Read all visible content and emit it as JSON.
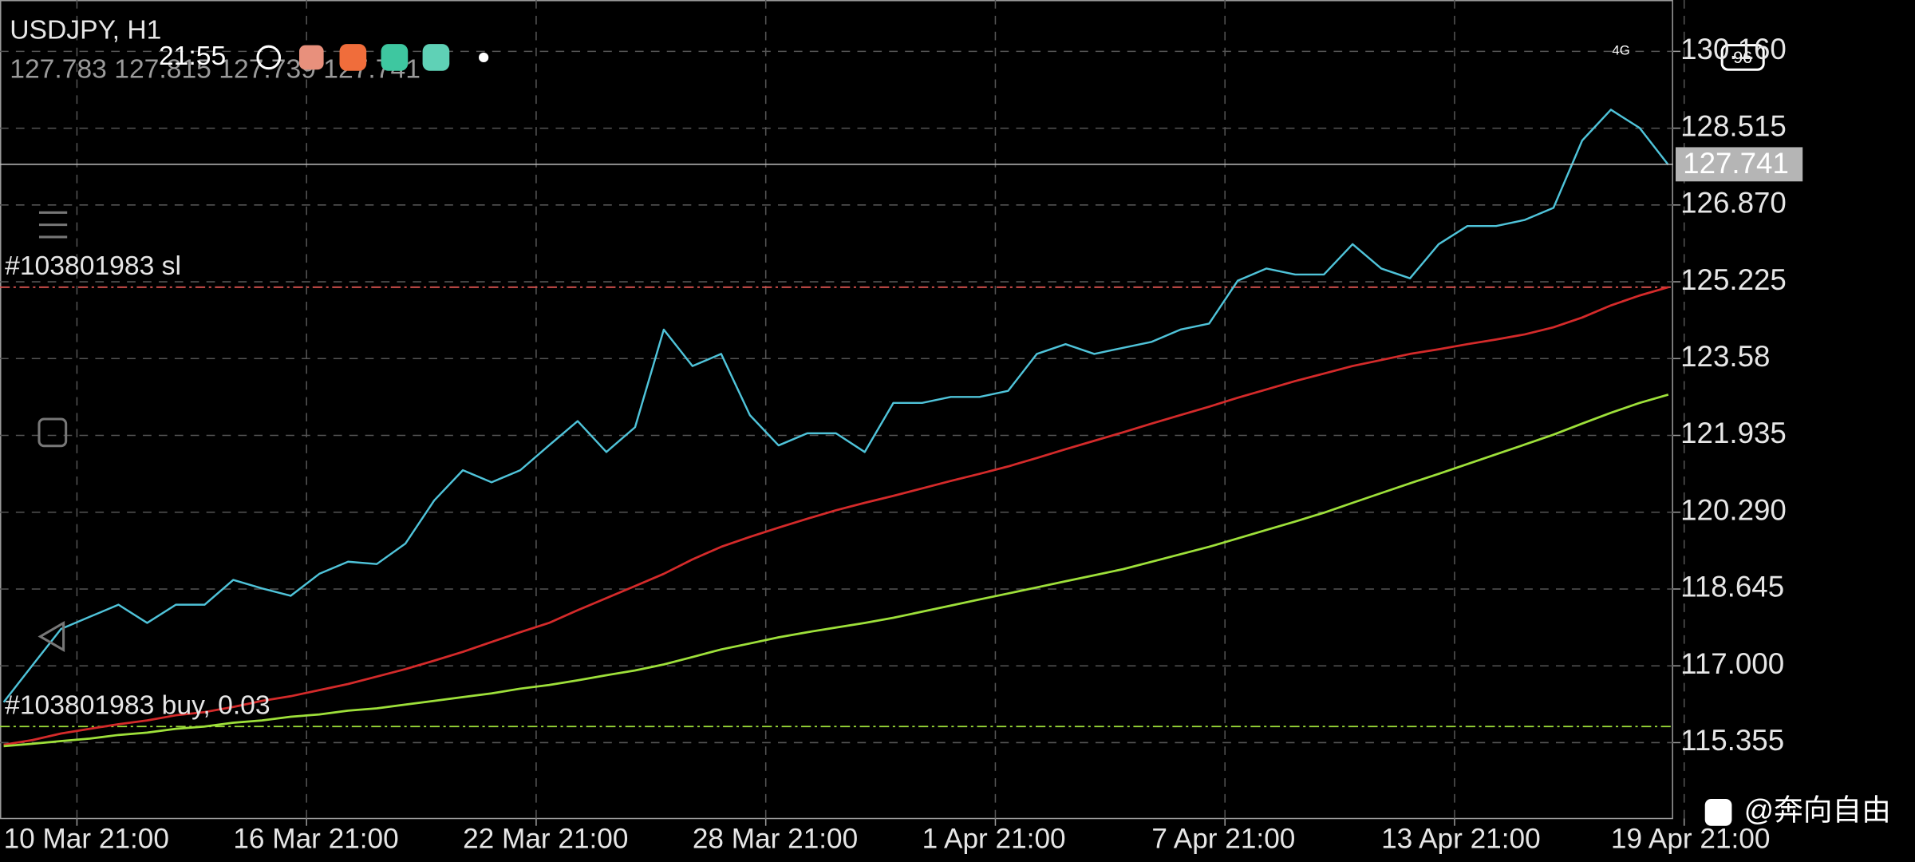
{
  "chart_data": {
    "type": "line",
    "title": "USDJPY, H1",
    "subtitle": "127.783 127.815 127.739 127.741",
    "categories": [
      "10 Mar 21:00",
      null,
      null,
      null,
      null,
      null,
      null,
      null,
      "16 Mar 21:00",
      null,
      null,
      null,
      null,
      null,
      null,
      null,
      "22 Mar 21:00",
      null,
      null,
      null,
      null,
      null,
      null,
      null,
      "28 Mar 21:00",
      null,
      null,
      null,
      null,
      null,
      null,
      null,
      "1 Apr 21:00",
      null,
      null,
      null,
      null,
      null,
      null,
      null,
      "7 Apr 21:00",
      null,
      null,
      null,
      null,
      null,
      null,
      null,
      "13 Apr 21:00",
      null,
      null,
      null,
      null,
      null,
      null,
      null,
      "19 Apr 21:00",
      null,
      null
    ],
    "series": [
      {
        "color": "#4fc3d9",
        "values": [
          116.22,
          117.01,
          117.79,
          118.05,
          118.31,
          117.92,
          118.31,
          118.31,
          118.84,
          118.66,
          118.5,
          118.97,
          119.23,
          119.18,
          119.62,
          120.54,
          121.19,
          120.93,
          121.19,
          121.72,
          122.24,
          121.58,
          122.11,
          124.2,
          123.42,
          123.68,
          122.37,
          121.72,
          121.98,
          121.98,
          121.58,
          122.63,
          122.63,
          122.76,
          122.76,
          122.89,
          123.68,
          123.89,
          123.68,
          123.81,
          123.94,
          124.2,
          124.33,
          125.25,
          125.51,
          125.38,
          125.38,
          126.03,
          125.51,
          125.3,
          126.03,
          126.42,
          126.42,
          126.55,
          126.81,
          128.25,
          128.91,
          128.52,
          127.73
        ]
      },
      {
        "color": "#d42a2a",
        "values": [
          115.31,
          115.41,
          115.55,
          115.65,
          115.75,
          115.83,
          115.94,
          116.01,
          116.12,
          116.25,
          116.35,
          116.48,
          116.61,
          116.77,
          116.93,
          117.11,
          117.3,
          117.51,
          117.72,
          117.92,
          118.19,
          118.45,
          118.71,
          118.97,
          119.28,
          119.55,
          119.76,
          119.96,
          120.15,
          120.33,
          120.49,
          120.64,
          120.8,
          120.96,
          121.11,
          121.27,
          121.45,
          121.64,
          121.82,
          122.0,
          122.19,
          122.37,
          122.55,
          122.74,
          122.92,
          123.1,
          123.26,
          123.42,
          123.55,
          123.68,
          123.78,
          123.89,
          123.99,
          124.1,
          124.25,
          124.46,
          124.72,
          124.93,
          125.11
        ]
      },
      {
        "color": "#9ee03a",
        "values": [
          115.28,
          115.33,
          115.39,
          115.44,
          115.52,
          115.57,
          115.65,
          115.7,
          115.78,
          115.83,
          115.91,
          115.96,
          116.04,
          116.09,
          116.17,
          116.25,
          116.33,
          116.41,
          116.51,
          116.59,
          116.69,
          116.8,
          116.9,
          117.03,
          117.19,
          117.35,
          117.48,
          117.61,
          117.72,
          117.82,
          117.92,
          118.03,
          118.16,
          118.29,
          118.42,
          118.55,
          118.68,
          118.81,
          118.94,
          119.07,
          119.23,
          119.39,
          119.55,
          119.73,
          119.91,
          120.09,
          120.28,
          120.49,
          120.7,
          120.91,
          121.11,
          121.32,
          121.53,
          121.74,
          121.95,
          122.19,
          122.42,
          122.63,
          122.81
        ]
      }
    ],
    "ylim": [
      113.73,
      131.26
    ],
    "yticks": [
      {
        "value": 130.16,
        "label": "130.160"
      },
      128.515,
      {
        "value": 126.87,
        "label": "126.870"
      },
      125.225,
      123.58,
      121.935,
      {
        "value": 120.29,
        "label": "120.290"
      },
      118.645,
      {
        "value": 117,
        "label": "117.000"
      },
      115.355
    ],
    "grid": true,
    "last_price": 127.741,
    "order_lines": [
      {
        "label": "#103801983 sl",
        "value": 125.11,
        "color": "#d9534f"
      },
      {
        "label": "#103801983 buy, 0.03",
        "value": 115.7,
        "color": "#9ee03a"
      }
    ]
  },
  "status_bar": {
    "time": "21:55",
    "network": "4G",
    "battery": "96"
  },
  "watermark": "@奔向自由"
}
